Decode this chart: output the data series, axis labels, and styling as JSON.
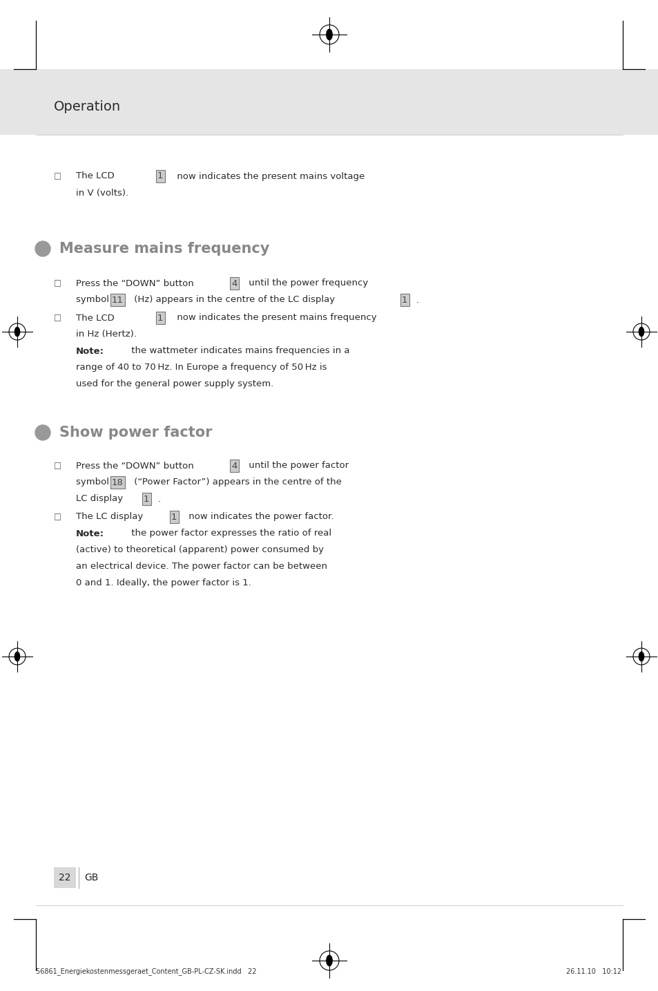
{
  "page_bg": "#ffffff",
  "header_bg": "#e8e8e8",
  "header_text": "Operation",
  "body_font_size": 9.5,
  "body_color": "#2a2a2a",
  "section_title_color": "#888888",
  "section_title_fontsize": 15,
  "section1_title": "Measure mains frequency",
  "section2_title": "Show power factor",
  "footer_left": "56861_Energiekostenmessgeraet_Content_GB-PL-CZ-SK.indd   22",
  "footer_right": "26.11.10   10:12",
  "footer_fontsize": 7.0,
  "page_number": "22",
  "page_label": "GB"
}
